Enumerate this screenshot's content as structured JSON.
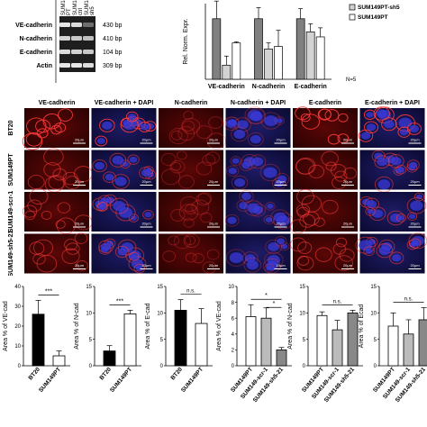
{
  "gel": {
    "columns": [
      "SUM149 PT",
      "SUM149 ctrl",
      "SUM149 sh5"
    ],
    "rows": [
      {
        "gene": "VE-cadherin",
        "size": "430 bp",
        "intensity": [
          0.95,
          0.9,
          0.35
        ]
      },
      {
        "gene": "N-cadherin",
        "size": "410 bp",
        "intensity": [
          0.85,
          0.8,
          0.75
        ]
      },
      {
        "gene": "E-cadherin",
        "size": "104 bp",
        "intensity": [
          0.9,
          0.85,
          0.8
        ]
      },
      {
        "gene": "Actin",
        "size": "309 bp",
        "intensity": [
          0.95,
          0.95,
          0.9
        ]
      }
    ]
  },
  "chart_data": [
    {
      "type": "bar",
      "ylabel": "Rel. Norm. Expr.",
      "categories": [
        "VE-cadherin",
        "N-cadherin",
        "E-cadherin"
      ],
      "ylim": [
        0,
        1.5
      ],
      "series": [
        {
          "name": "",
          "color": "#808080",
          "values": [
            1.2,
            1.2,
            1.2
          ],
          "errors": [
            0.35,
            0.22,
            0.2
          ]
        },
        {
          "name": "SUM149PT-sh5",
          "color": "#d3d3d3",
          "values": [
            0.28,
            0.6,
            0.94
          ],
          "errors": [
            0.18,
            0.12,
            0.16
          ]
        },
        {
          "name": "SUM149PT",
          "color": "#ffffff",
          "values": [
            0.72,
            0.65,
            0.84
          ],
          "errors": [
            0.02,
            0.32,
            0.18
          ]
        }
      ],
      "annotation": "N=5"
    },
    {
      "type": "bar",
      "ylabel": "Area % of VE-cad",
      "categories": [
        "BT20",
        "SUM149PT"
      ],
      "values": [
        26,
        5
      ],
      "errors": [
        7,
        2.5
      ],
      "colors": [
        "#000000",
        "#ffffff"
      ],
      "ylim": [
        0,
        40
      ],
      "ticks": [
        0,
        10,
        20,
        30,
        40
      ],
      "significance": "***"
    },
    {
      "type": "bar",
      "ylabel": "Area % of N-cad",
      "categories": [
        "BT20",
        "SUM149PT"
      ],
      "values": [
        2.8,
        9.8
      ],
      "errors": [
        1,
        0.7
      ],
      "colors": [
        "#000000",
        "#ffffff"
      ],
      "ylim": [
        0,
        15
      ],
      "ticks": [
        0,
        5,
        10,
        15
      ],
      "significance": "***"
    },
    {
      "type": "bar",
      "ylabel": "Area % of E-cad",
      "categories": [
        "BT20",
        "SUM149PT"
      ],
      "values": [
        10.5,
        8
      ],
      "errors": [
        2,
        2.8
      ],
      "colors": [
        "#000000",
        "#ffffff"
      ],
      "ylim": [
        0,
        15
      ],
      "ticks": [
        0,
        5,
        10,
        15
      ],
      "significance": "n.s."
    },
    {
      "type": "bar",
      "ylabel": "Area % of VE-cad",
      "categories": [
        "SUM149PT",
        "SUM149-scr-1",
        "SUM149-sh5-21"
      ],
      "values": [
        6.2,
        6,
        2
      ],
      "errors": [
        1.5,
        1.3,
        0.3
      ],
      "colors": [
        "#ffffff",
        "#bbbbbb",
        "#888888"
      ],
      "ylim": [
        0,
        10
      ],
      "ticks": [
        0,
        2,
        4,
        6,
        8,
        10
      ],
      "significance": "*"
    },
    {
      "type": "bar",
      "ylabel": "Area % of N-cad",
      "categories": [
        "SUM149PT",
        "SUM149-scr-1",
        "SUM149-sh5-21"
      ],
      "values": [
        9.5,
        6.8,
        10
      ],
      "errors": [
        0.7,
        1.8,
        0.5
      ],
      "colors": [
        "#ffffff",
        "#bbbbbb",
        "#888888"
      ],
      "ylim": [
        0,
        15
      ],
      "ticks": [
        0,
        5,
        10,
        15
      ],
      "significance": "n.s."
    },
    {
      "type": "bar",
      "ylabel": "Area % of Ecad",
      "categories": [
        "SUM149PT",
        "SUM149-scr-1",
        "SUM149-sh5-21"
      ],
      "values": [
        7.5,
        6,
        8.7
      ],
      "errors": [
        2.5,
        2.7,
        2.3
      ],
      "colors": [
        "#ffffff",
        "#bbbbbb",
        "#888888"
      ],
      "ylim": [
        0,
        15
      ],
      "ticks": [
        0,
        5,
        10,
        15
      ],
      "significance": "n.s."
    }
  ],
  "microscopy": {
    "column_titles": [
      "VE-cadherin",
      "VE-cadherin + DAPI",
      "N-cadherin",
      "N-cadherin + DAPI",
      "E-cadherin",
      "E-cadherin + DAPI"
    ],
    "row_labels": [
      "BT20",
      "SUM149PT",
      "SUM149-scr-1",
      "SUM149-sh5-21"
    ],
    "scale_bar": "20µm",
    "tile_colors": {
      "red": "#7a0a0a",
      "merge": "#25226a",
      "edge": "#ff3a3a",
      "nucleus": "#3a3ad8"
    }
  }
}
